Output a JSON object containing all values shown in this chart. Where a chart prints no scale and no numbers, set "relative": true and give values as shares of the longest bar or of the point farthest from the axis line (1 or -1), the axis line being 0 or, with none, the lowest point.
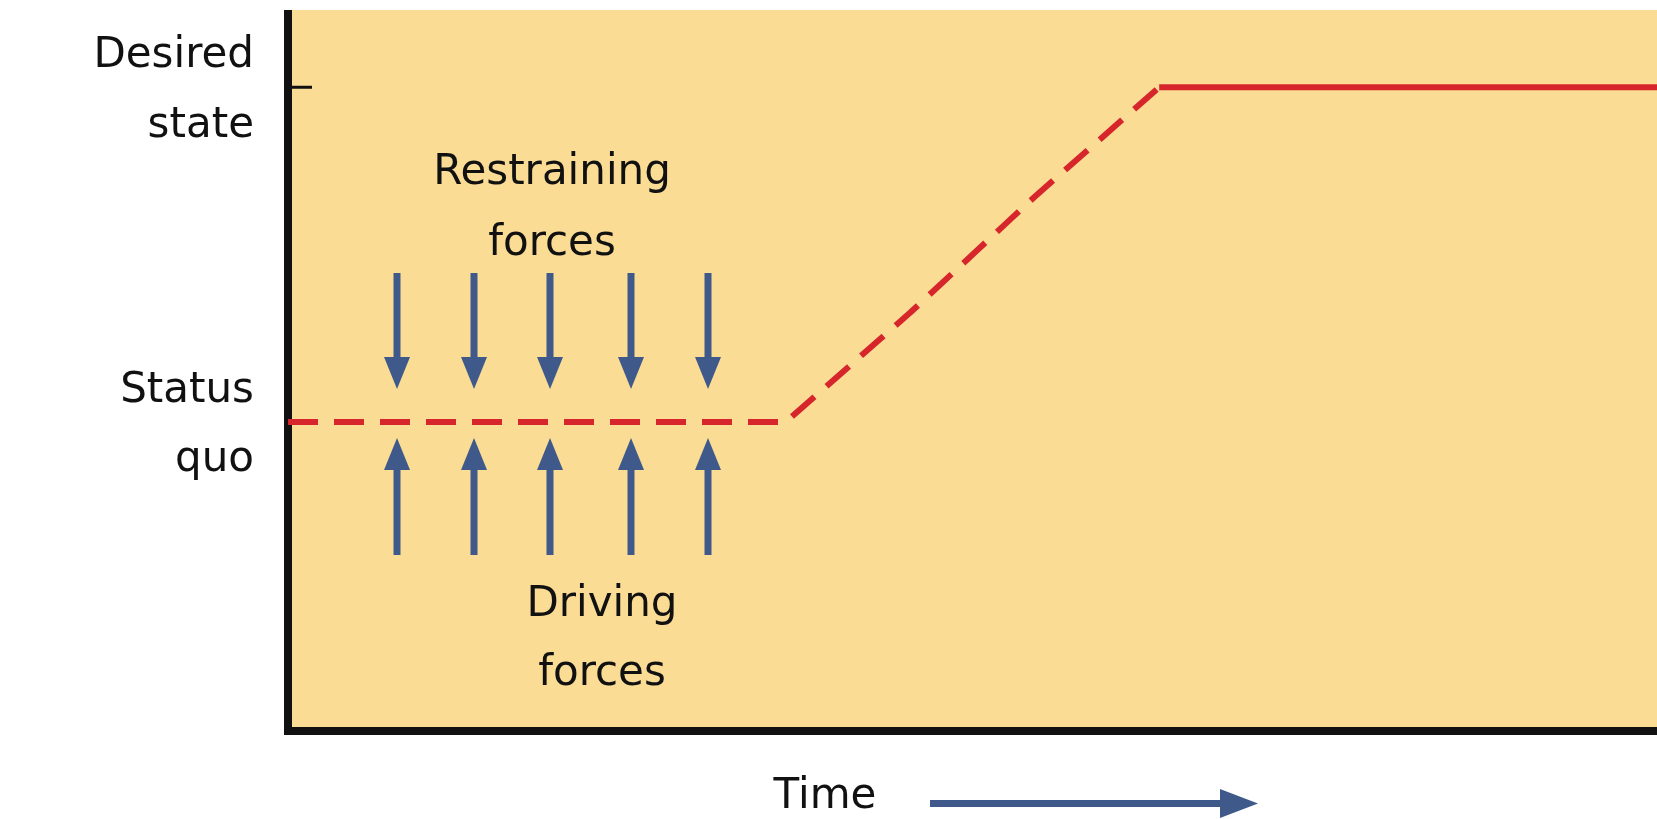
{
  "chart_data": {
    "type": "line",
    "xlabel": "Time",
    "relative": true,
    "categories": [
      null,
      null,
      null,
      null,
      null,
      null,
      null,
      null,
      null,
      null,
      null,
      null
    ],
    "series": [
      {
        "color": "#d7262b",
        "line_style": "dashed",
        "values": [
          0.48,
          0.48,
          0.48,
          0.48,
          0.48,
          0.65,
          0.83,
          1,
          null,
          null,
          null,
          null
        ]
      },
      {
        "color": "#d7262b",
        "line_style": "solid",
        "values": [
          null,
          null,
          null,
          null,
          null,
          null,
          null,
          1,
          1,
          1,
          1,
          1
        ]
      }
    ],
    "annotations": [
      "Desired state",
      "Status quo",
      "Restraining forces",
      "Driving forces"
    ],
    "marker": "none"
  }
}
